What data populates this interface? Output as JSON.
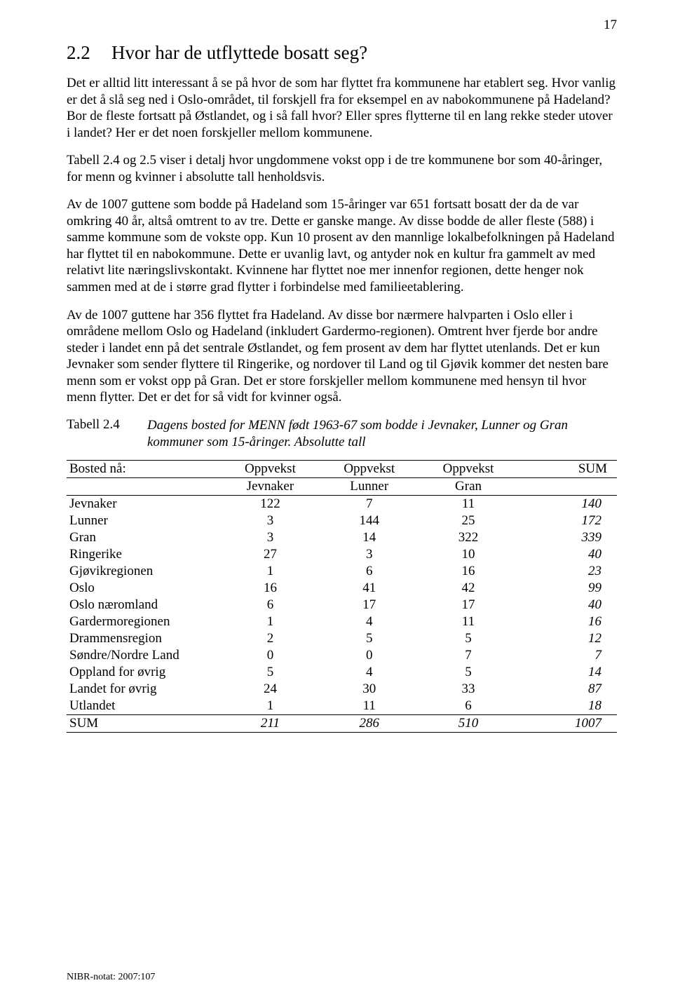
{
  "page_number": "17",
  "section": {
    "number": "2.2",
    "title": "Hvor har de utflyttede bosatt seg?"
  },
  "paragraphs": {
    "p1": "Det er alltid litt interessant å se på hvor de som har flyttet fra kommunene har etablert seg. Hvor vanlig er det å slå seg ned i Oslo-området, til forskjell fra for eksempel en av nabokommunene på Hadeland? Bor de fleste fortsatt på Østlandet, og i så fall hvor? Eller spres flytterne til en lang rekke steder utover i landet? Her er det noen forskjeller mellom kommunene.",
    "p2": "Tabell 2.4 og 2.5 viser i detalj hvor ungdommene vokst opp i de tre kommunene bor som 40-åringer, for menn og kvinner i absolutte tall henholdsvis.",
    "p3": "Av de 1007 guttene som bodde på Hadeland som 15-åringer var 651 fortsatt bosatt der da de var omkring 40 år, altså omtrent to av tre. Dette er ganske mange. Av disse bodde de aller fleste (588) i samme kommune som de vokste opp. Kun 10 prosent av den mannlige lokalbefolkningen på Hadeland har flyttet til en nabokommune. Dette er uvanlig lavt, og antyder nok en kultur fra gammelt av med relativt lite næringslivskontakt. Kvinnene har flyttet noe mer innenfor regionen, dette henger nok sammen med at de i større grad flytter i forbindelse med familieetablering.",
    "p4": "Av de 1007 guttene har 356 flyttet fra Hadeland. Av disse bor nærmere halvparten i Oslo eller i områdene mellom Oslo og Hadeland (inkludert Gardermo-regionen). Omtrent hver fjerde bor andre steder i landet enn på det sentrale Østlandet, og fem prosent av dem har flyttet utenlands. Det er kun Jevnaker som sender flyttere til Ringerike, og nordover til Land og til Gjøvik kommer det nesten bare menn som er vokst opp på Gran. Det er store forskjeller mellom kommunene med hensyn til hvor menn flytter. Det er det for så vidt for kvinner også."
  },
  "table": {
    "caption_label": "Tabell 2.4",
    "caption_text": "Dagens bosted for MENN født 1963-67 som bodde i Jevnaker, Lunner og Gran kommuner som 15-åringer. Absolutte tall",
    "header": {
      "row1": [
        "Bosted nå:",
        "Oppvekst",
        "Oppvekst",
        "Oppvekst",
        "SUM"
      ],
      "row2": [
        "",
        "Jevnaker",
        "Lunner",
        "Gran",
        ""
      ]
    },
    "rows": [
      {
        "label": "Jevnaker",
        "c1": "122",
        "c2": "7",
        "c3": "11",
        "sum": "140"
      },
      {
        "label": "Lunner",
        "c1": "3",
        "c2": "144",
        "c3": "25",
        "sum": "172"
      },
      {
        "label": "Gran",
        "c1": "3",
        "c2": "14",
        "c3": "322",
        "sum": "339"
      },
      {
        "label": "Ringerike",
        "c1": "27",
        "c2": "3",
        "c3": "10",
        "sum": "40"
      },
      {
        "label": "Gjøvikregionen",
        "c1": "1",
        "c2": "6",
        "c3": "16",
        "sum": "23"
      },
      {
        "label": "Oslo",
        "c1": "16",
        "c2": "41",
        "c3": "42",
        "sum": "99"
      },
      {
        "label": "Oslo næromland",
        "c1": "6",
        "c2": "17",
        "c3": "17",
        "sum": "40"
      },
      {
        "label": "Gardermoregionen",
        "c1": "1",
        "c2": "4",
        "c3": "11",
        "sum": "16"
      },
      {
        "label": "Drammensregion",
        "c1": "2",
        "c2": "5",
        "c3": "5",
        "sum": "12"
      },
      {
        "label": "Søndre/Nordre Land",
        "c1": "0",
        "c2": "0",
        "c3": "7",
        "sum": "7"
      },
      {
        "label": "Oppland for øvrig",
        "c1": "5",
        "c2": "4",
        "c3": "5",
        "sum": "14"
      },
      {
        "label": "Landet for øvrig",
        "c1": "24",
        "c2": "30",
        "c3": "33",
        "sum": "87"
      },
      {
        "label": "Utlandet",
        "c1": "1",
        "c2": "11",
        "c3": "6",
        "sum": "18"
      }
    ],
    "sum_row": {
      "label": "SUM",
      "c1": "211",
      "c2": "286",
      "c3": "510",
      "sum": "1007"
    }
  },
  "footer": "NIBR-notat: 2007:107"
}
